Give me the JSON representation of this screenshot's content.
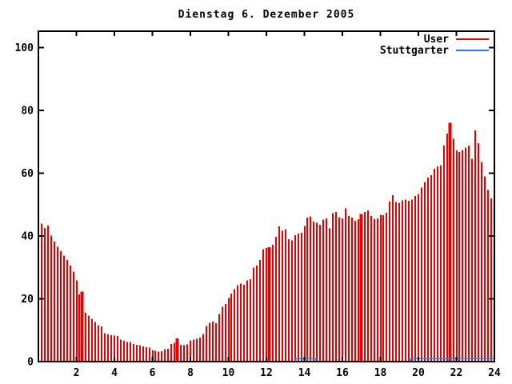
{
  "title": "Dienstag 6. Dezember 2005",
  "legend": [
    {
      "label": "User",
      "color": "#e60000"
    },
    {
      "label": "Stuttgarter",
      "color": "#1e82dc"
    }
  ],
  "colors": {
    "axis": "#000000",
    "background": "#ffffff",
    "bars": "#e60000",
    "line": "#1e82dc"
  },
  "chart_data": {
    "type": "bar",
    "title": "Dienstag 6. Dezember 2005",
    "xlabel": "",
    "ylabel": "",
    "xlim": [
      0,
      24
    ],
    "ylim": [
      0,
      105
    ],
    "x_tick_labels": [
      "2",
      "4",
      "6",
      "8",
      "10",
      "12",
      "14",
      "16",
      "18",
      "20",
      "22",
      "24"
    ],
    "x_tick_values": [
      2,
      4,
      6,
      8,
      10,
      12,
      14,
      16,
      18,
      20,
      22,
      24
    ],
    "y_tick_labels": [
      "0",
      "20",
      "40",
      "60",
      "80",
      "100"
    ],
    "y_tick_values": [
      0,
      20,
      40,
      60,
      80,
      100
    ],
    "grid": "off",
    "legend_position": "top-right-inside",
    "sample_interval_hours": 0.16667,
    "series": [
      {
        "name": "User",
        "style": "impulses",
        "color": "#e60000",
        "values": [
          44.0,
          42.6,
          43.3,
          40.1,
          38.2,
          36.6,
          35.2,
          33.8,
          32.4,
          30.6,
          28.6,
          25.8,
          21.4,
          22.3,
          15.6,
          14.6,
          13.6,
          12.6,
          11.6,
          11.2,
          9.0,
          8.7,
          8.4,
          8.3,
          8.2,
          7.0,
          6.6,
          6.3,
          6.2,
          5.6,
          5.3,
          5.2,
          4.8,
          4.6,
          4.4,
          3.6,
          3.4,
          3.2,
          3.3,
          3.9,
          4.1,
          5.6,
          6.0,
          7.4,
          5.4,
          5.2,
          5.5,
          6.8,
          7.0,
          7.3,
          7.6,
          8.8,
          11.4,
          12.4,
          12.7,
          12.2,
          15.2,
          17.4,
          18.4,
          20.2,
          21.6,
          23.0,
          24.3,
          24.8,
          24.4,
          25.8,
          26.2,
          30.0,
          30.6,
          32.4,
          35.8,
          36.2,
          36.4,
          37.2,
          39.8,
          43.0,
          41.6,
          42.2,
          39.0,
          38.6,
          40.2,
          40.8,
          41.0,
          43.2,
          45.8,
          46.2,
          44.6,
          44.2,
          43.6,
          45.2,
          45.6,
          42.4,
          47.2,
          47.6,
          46.0,
          45.6,
          48.8,
          46.4,
          45.8,
          44.8,
          45.4,
          47.0,
          47.6,
          48.2,
          46.4,
          45.4,
          45.6,
          46.8,
          46.6,
          47.4,
          51.0,
          53.0,
          50.8,
          50.6,
          51.4,
          51.6,
          51.2,
          51.6,
          52.8,
          53.4,
          55.4,
          57.2,
          58.6,
          59.4,
          61.4,
          62.2,
          62.6,
          68.8,
          72.6,
          76.0,
          71.0,
          67.2,
          66.8,
          67.4,
          68.2,
          68.8,
          64.6,
          73.6,
          69.6,
          63.6,
          59.0,
          54.6,
          52.0,
          50.8
        ],
        "thick_bar_indices": [
          13,
          43,
          72,
          101,
          129
        ]
      },
      {
        "name": "Stuttgarter",
        "style": "line",
        "color": "#1e82dc",
        "segments": [
          {
            "start_h": 13.55,
            "end_h": 14.6,
            "value": 1.0
          },
          {
            "start_h": 19.6,
            "end_h": 24.0,
            "value": 1.0
          }
        ]
      }
    ]
  }
}
